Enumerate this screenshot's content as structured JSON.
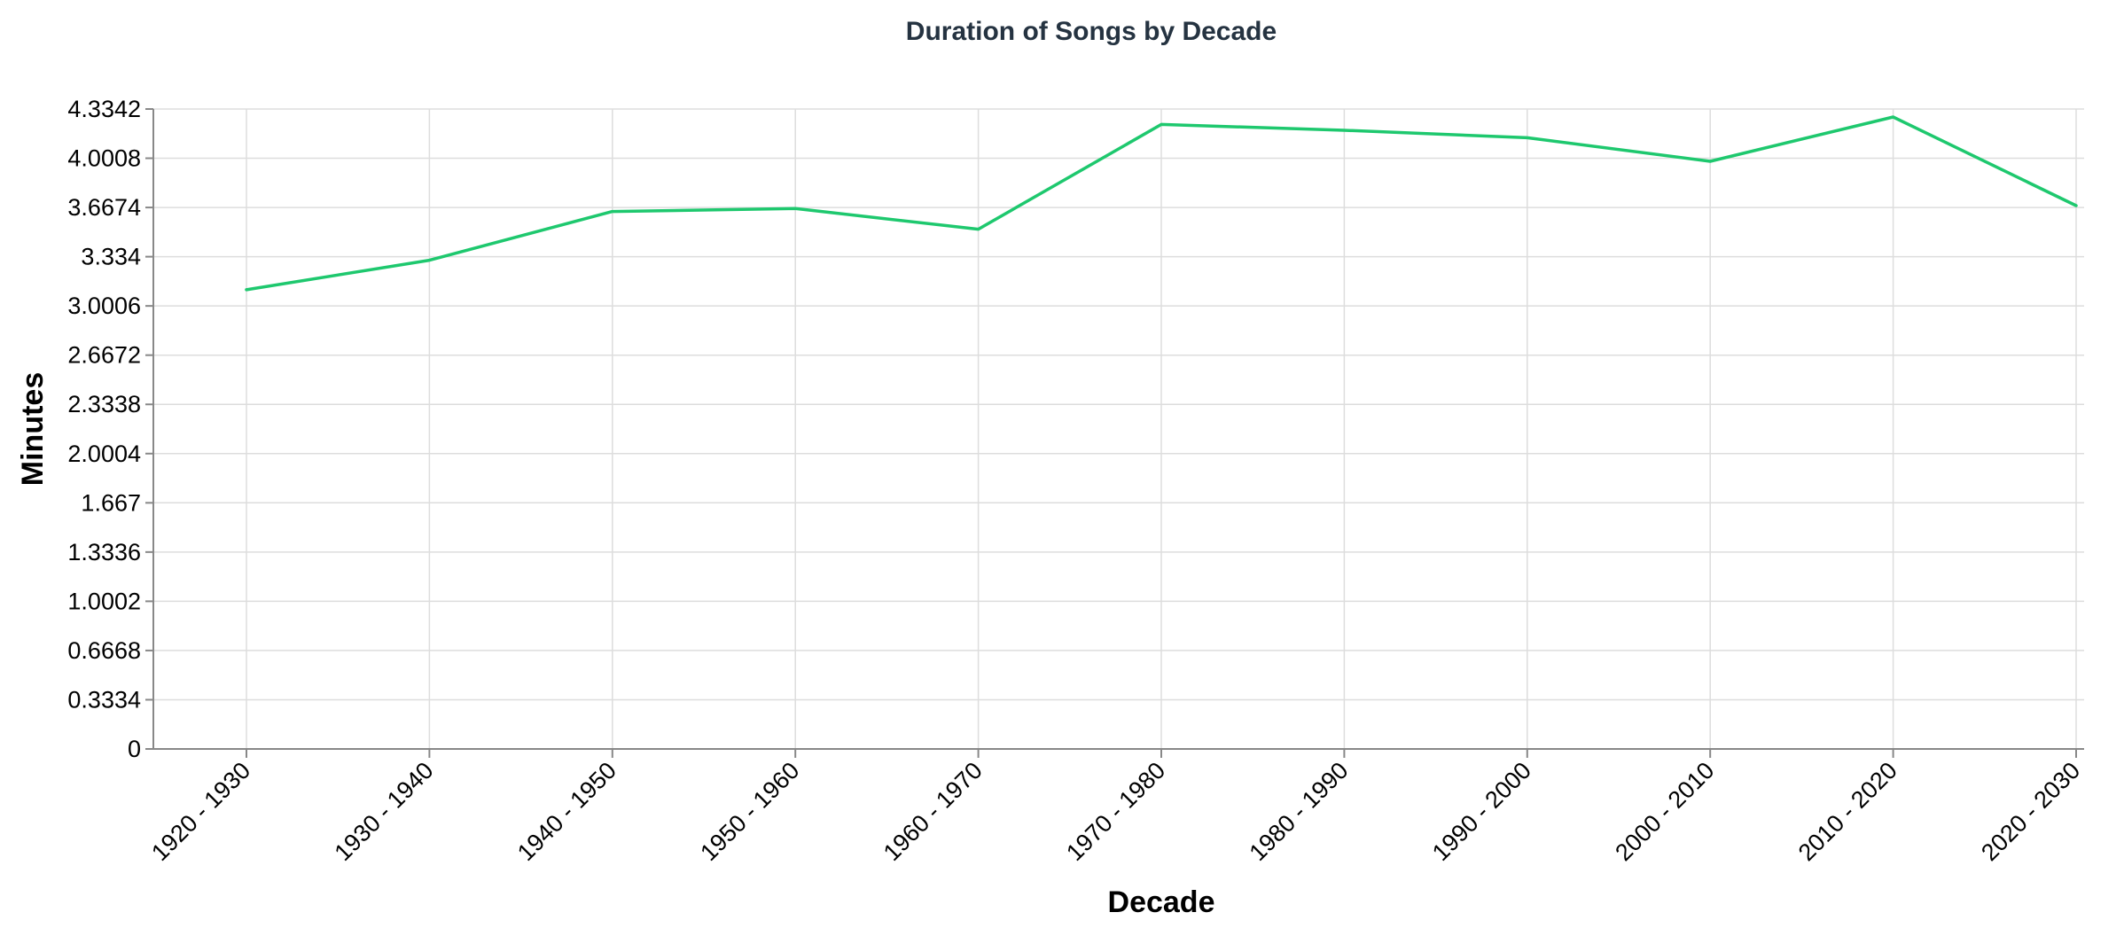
{
  "chart_data": {
    "type": "line",
    "title": "Duration of Songs by Decade",
    "xlabel": "Decade",
    "ylabel": "Minutes",
    "categories": [
      "1920 - 1930",
      "1930 - 1940",
      "1940 - 1950",
      "1950 - 1960",
      "1960 - 1970",
      "1970 - 1980",
      "1980 - 1990",
      "1990 - 2000",
      "2000 - 2010",
      "2010 - 2020",
      "2020 - 2030"
    ],
    "series": [
      {
        "values": [
          3.11,
          3.31,
          3.64,
          3.66,
          3.52,
          4.23,
          4.19,
          4.14,
          3.98,
          4.28,
          3.68
        ],
        "color": "#1ec86e"
      }
    ],
    "ylim": [
      0,
      4.3342
    ],
    "yticks": [
      "0",
      "0.3334",
      "0.6668",
      "1.0002",
      "1.3336",
      "1.667",
      "2.0004",
      "2.3338",
      "2.6672",
      "3.0006",
      "3.334",
      "3.6674",
      "4.0008",
      "4.3342"
    ],
    "grid": true,
    "legend": "none"
  }
}
